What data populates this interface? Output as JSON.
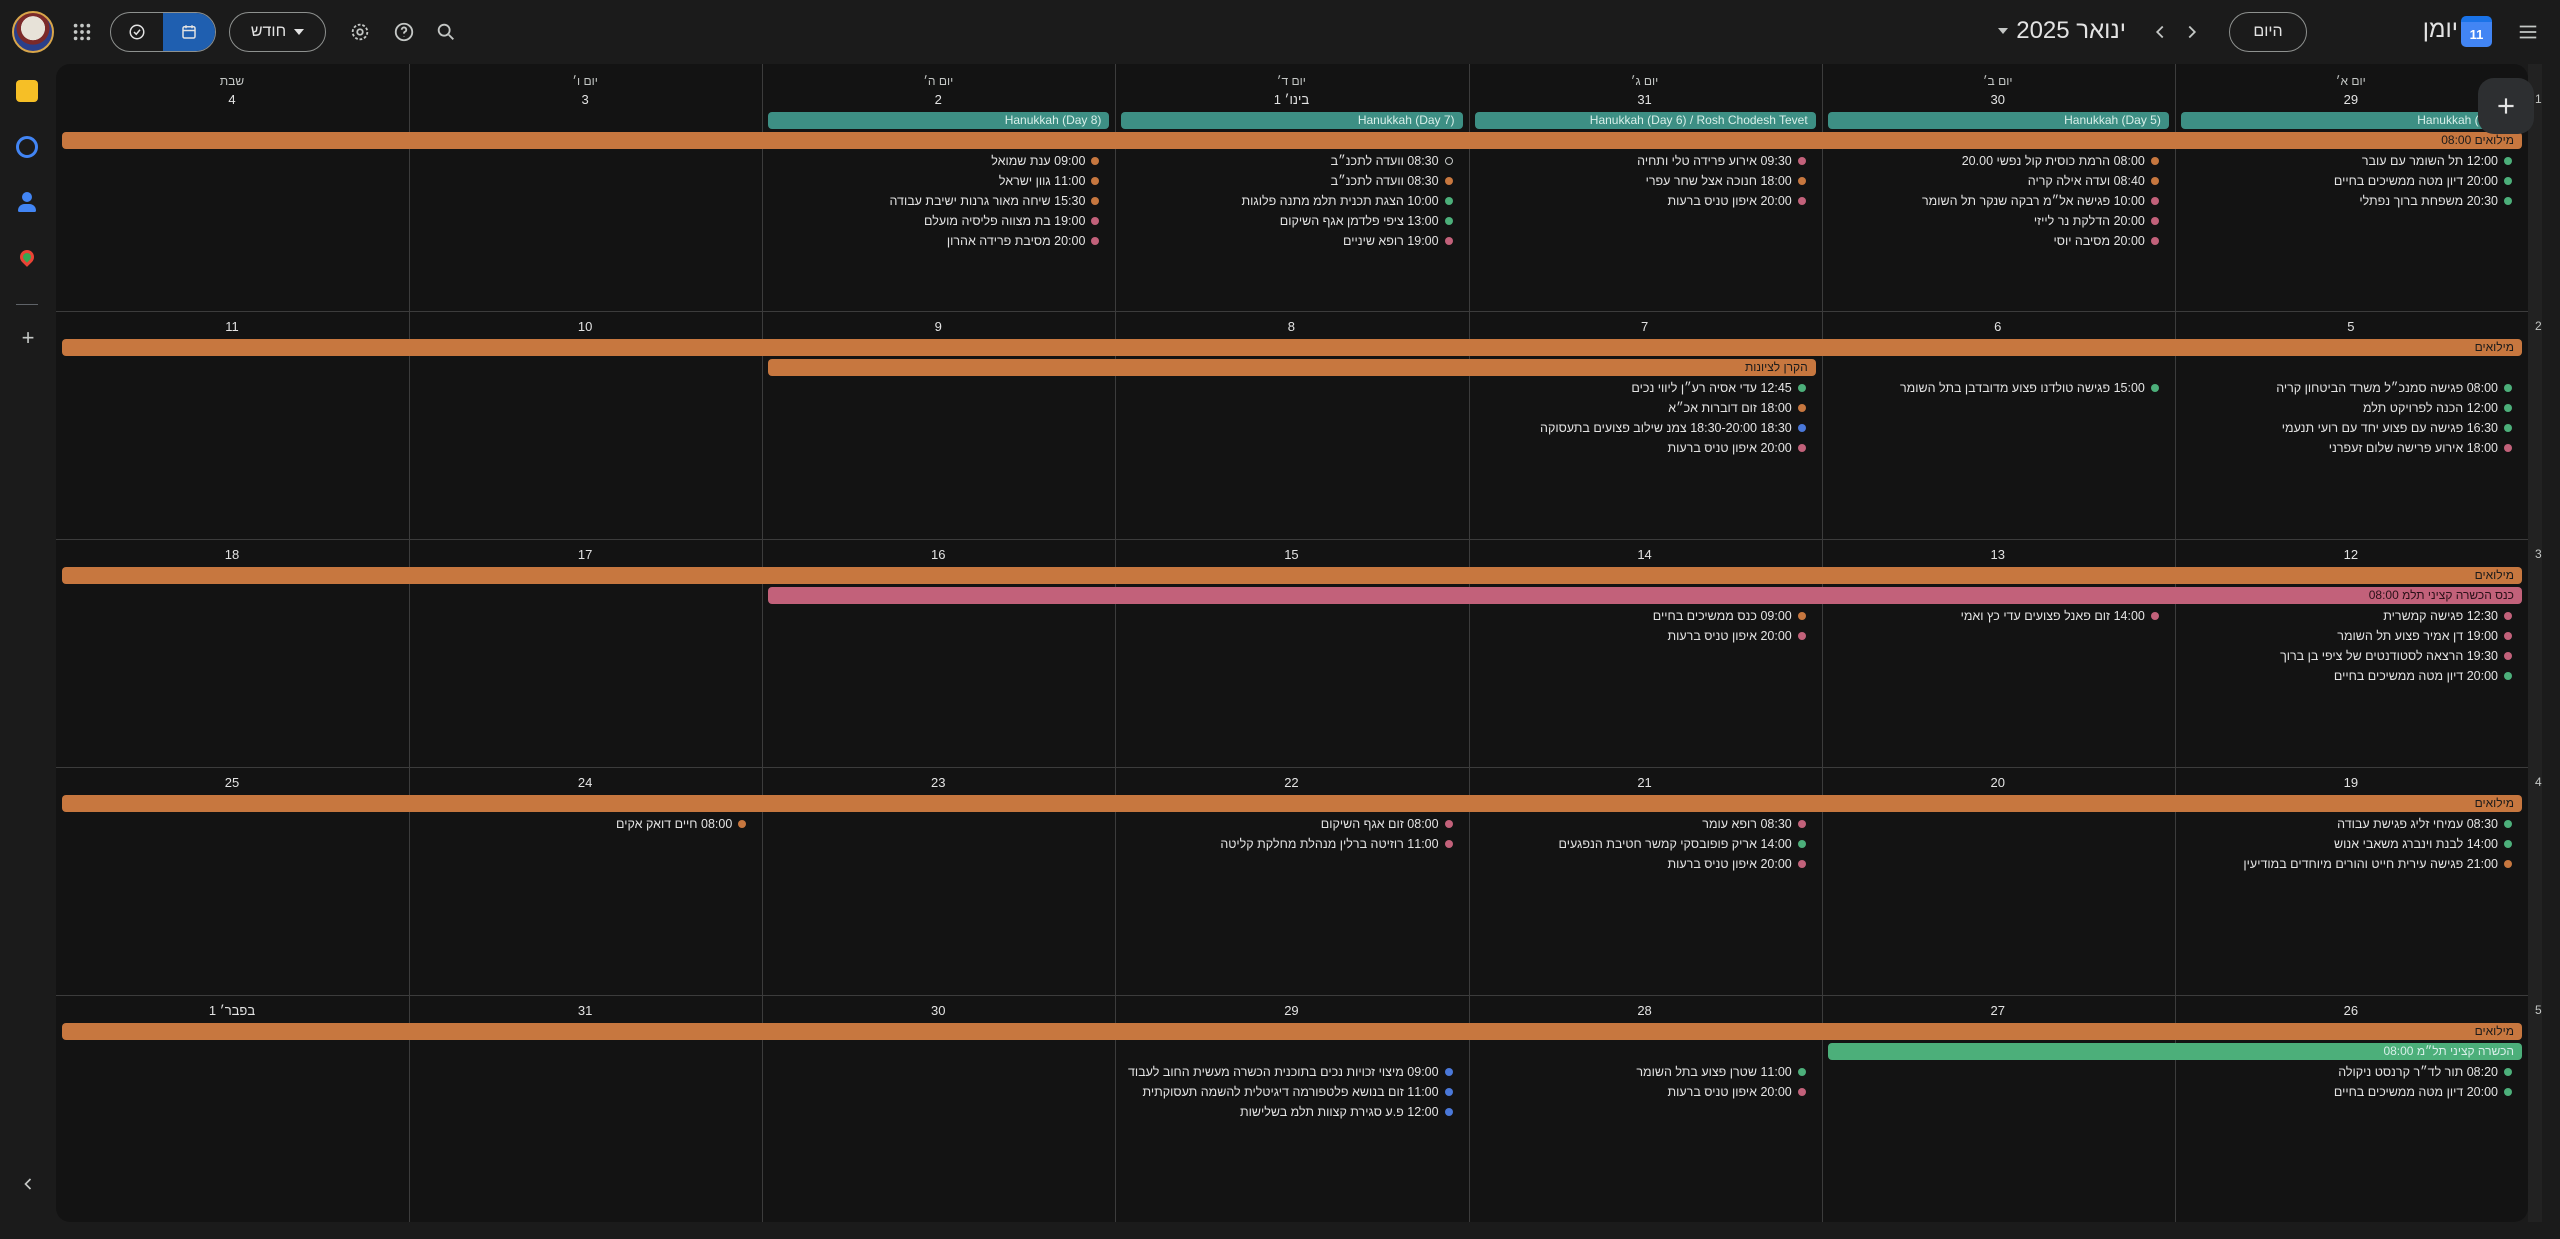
{
  "header": {
    "app_name": "יומן",
    "app_icon_day": "11",
    "today_label": "היום",
    "month_title": "ינואר 2025",
    "view_label": "חודש"
  },
  "day_names": [
    "יום א׳",
    "יום ב׳",
    "יום ג׳",
    "יום ד׳",
    "יום ה׳",
    "יום ו׳",
    "שבת"
  ],
  "colors": {
    "orange": "#c7773f",
    "teal": "#3d8f84",
    "pink": "#c2617a",
    "green": "#4caf7a",
    "blue": "#4a78d9",
    "red": "#d05a5a"
  },
  "weeks": [
    {
      "num": "1",
      "dates": [
        "29",
        "30",
        "31",
        "1 בינו׳",
        "2",
        "3",
        "4"
      ],
      "bars": [
        {
          "text": "Hanukkah (Day 4)",
          "start": 0,
          "end": 0,
          "row": 0,
          "color": "teal"
        },
        {
          "text": "Hanukkah (Day 5)",
          "start": 1,
          "end": 1,
          "row": 0,
          "color": "teal"
        },
        {
          "text": "Hanukkah (Day 6) / Rosh Chodesh Tevet",
          "start": 2,
          "end": 2,
          "row": 0,
          "color": "teal"
        },
        {
          "text": "Hanukkah (Day 7)",
          "start": 3,
          "end": 3,
          "row": 0,
          "color": "teal"
        },
        {
          "text": "Hanukkah (Day 8)",
          "start": 4,
          "end": 4,
          "row": 0,
          "color": "teal"
        },
        {
          "text": "08:00 מילואים",
          "start": 0,
          "end": 6,
          "row": 1,
          "color": "orange"
        }
      ],
      "events": [
        [
          [
            "12:00 תל השומר עם עובר",
            "green"
          ],
          [
            "20:00 דיון מטה ממשיכים בחיים",
            "green"
          ],
          [
            "20:30 משפחת ברוך נפתלי",
            "green"
          ]
        ],
        [
          [
            "08:00 הרמת כוסית קול נפשי 20.00",
            "orange"
          ],
          [
            "08:40 ועדה אילה קריה",
            "orange"
          ],
          [
            "10:00 פגישה אל״מ רבקה שנקר תל השומר",
            "pink"
          ],
          [
            "20:00 הדלקת נר לייזי",
            "pink"
          ],
          [
            "20:00 מסיבה יוסי",
            "pink"
          ]
        ],
        [
          [
            "09:30 אירוע פרידה טלי ותחיה",
            "pink"
          ],
          [
            "18:00 חנוכה אצל שחר עפרי",
            "orange"
          ],
          [
            "20:00 איפון טניס ברעות",
            "pink"
          ]
        ],
        [
          [
            "08:30 וועדה לתכנ״ב",
            "hollow"
          ],
          [
            "08:30 וועדה לתכנ״ב",
            "orange"
          ],
          [
            "10:00 הצגת תכנית תלמ מתנה פלוגות",
            "green"
          ],
          [
            "13:00 ציפי פלדמן אגף השיקום",
            "green"
          ],
          [
            "19:00 רופא שיניים",
            "pink"
          ]
        ],
        [
          [
            "09:00 ענת שמואל",
            "orange"
          ],
          [
            "11:00 גוון ישראל",
            "orange"
          ],
          [
            "15:30 שיחה מאור גרנות ישיבת עבודה",
            "orange"
          ],
          [
            "19:00 בת מצווה פליסיה מועלם",
            "pink"
          ],
          [
            "20:00 מסיבת פרידה אהרון",
            "pink"
          ]
        ],
        [],
        []
      ]
    },
    {
      "num": "2",
      "dates": [
        "5",
        "6",
        "7",
        "8",
        "9",
        "10",
        "11"
      ],
      "bars": [
        {
          "text": "מילואים",
          "start": 0,
          "end": 6,
          "row": 0,
          "color": "orange"
        },
        {
          "text": "הקרן לציונות",
          "start": 2.95,
          "end": 4,
          "row": 1,
          "color": "orange",
          "offset": true
        }
      ],
      "events": [
        [
          [
            "08:00 פגישה סמנכ״ל משרד הביטחון קריה",
            "green"
          ],
          [
            "12:00 הכנה לפרויקט תלמ",
            "green"
          ],
          [
            "16:30 פגישה עם פצוע יחד עם רועי תנעמי",
            "green"
          ],
          [
            "18:00 אירוע פרישה שלום זעפרני",
            "pink"
          ]
        ],
        [
          [
            "15:00 פגישה טולדנו פצוע מדובדבן בתל השומר",
            "green"
          ]
        ],
        [
          [
            "12:45 עדי אסיה רע״ן ליווי נכים",
            "green"
          ],
          [
            "18:00 זום דוברות אכ״א",
            "orange"
          ],
          [
            "18:30 18:30-20:00 צמנ שילוב פצועים בתעסוקה",
            "blue"
          ],
          [
            "20:00 איפון טניס ברעות",
            "pink"
          ]
        ],
        [],
        [],
        [],
        []
      ]
    },
    {
      "num": "3",
      "dates": [
        "12",
        "13",
        "14",
        "15",
        "16",
        "17",
        "18"
      ],
      "bars": [
        {
          "text": "מילואים",
          "start": 0,
          "end": 6,
          "row": 0,
          "color": "orange"
        },
        {
          "text": "08:00 כנס הכשרה קציני תלמ",
          "start": 0,
          "end": 4,
          "row": 1,
          "color": "pink"
        }
      ],
      "events": [
        [
          [
            "12:30 פגישה קמשרית",
            "pink"
          ],
          [
            "19:00 דן אמיר פצוע תל השומר",
            "pink"
          ],
          [
            "19:30 הרצאה לסטודנטים של ציפי בן ברוך",
            "pink"
          ],
          [
            "20:00 דיון מטה ממשיכים בחיים",
            "green"
          ]
        ],
        [
          [
            "14:00 זום פאנל פצועים עדי כץ ואמי",
            "pink"
          ]
        ],
        [
          [
            "09:00 כנס ממשיכים בחיים",
            "orange"
          ],
          [
            "20:00 איפון טניס ברעות",
            "pink"
          ]
        ],
        [],
        [],
        [],
        []
      ]
    },
    {
      "num": "4",
      "dates": [
        "19",
        "20",
        "21",
        "22",
        "23",
        "24",
        "25"
      ],
      "bars": [
        {
          "text": "מילואים",
          "start": 0,
          "end": 6,
          "row": 0,
          "color": "orange"
        }
      ],
      "events": [
        [
          [
            "08:30 עמיחי זליג פגישת עבודה",
            "green"
          ],
          [
            "14:00 לבנת וינברג משאבי אנוש",
            "green"
          ],
          [
            "21:00 פגישה עירית חייט והורים מיוחדים במודיעין",
            "orange"
          ]
        ],
        [],
        [
          [
            "08:30 רופא עומר",
            "pink"
          ],
          [
            "14:00 אריק פופובסקי קמשר חטיבת הנפגעים",
            "green"
          ],
          [
            "20:00 איפון טניס ברעות",
            "pink"
          ]
        ],
        [
          [
            "08:00 זום אגף השיקום",
            "pink"
          ],
          [
            "11:00 רוזיטה ברלין מנהלת מחלקת קליטה",
            "pink"
          ]
        ],
        [],
        [
          [
            "08:00 חיים דואק אקים",
            "orange"
          ]
        ],
        []
      ]
    },
    {
      "num": "5",
      "dates": [
        "26",
        "27",
        "28",
        "29",
        "30",
        "31",
        "1 בפבר׳"
      ],
      "bars": [
        {
          "text": "מילואים",
          "start": 0,
          "end": 6,
          "row": 0,
          "color": "orange"
        },
        {
          "text": "08:00 הכשרה קציני תל״מ",
          "start": 0,
          "end": 1,
          "row": 1,
          "color": "green"
        }
      ],
      "events": [
        [
          [
            "08:20 תור לד״ר קרנסט ניקולה",
            "green"
          ],
          [
            "20:00 דיון מטה ממשיכים בחיים",
            "green"
          ]
        ],
        [],
        [
          [
            "11:00 שטרן פצוע בתל השומר",
            "green"
          ],
          [
            "20:00 איפון טניס ברעות",
            "pink"
          ]
        ],
        [
          [
            "09:00 מיצוי זכויות נכים בתוכנית הכשרה מעשית החוב לעבוד",
            "blue"
          ],
          [
            "11:00 זום בנושא פלטפורמה דיגיטלית להשמה תעסוקתית",
            "blue"
          ],
          [
            "12:00 פ.ע סגירת קצוות תלמ בשלישות",
            "blue"
          ]
        ],
        [],
        [],
        []
      ]
    }
  ]
}
